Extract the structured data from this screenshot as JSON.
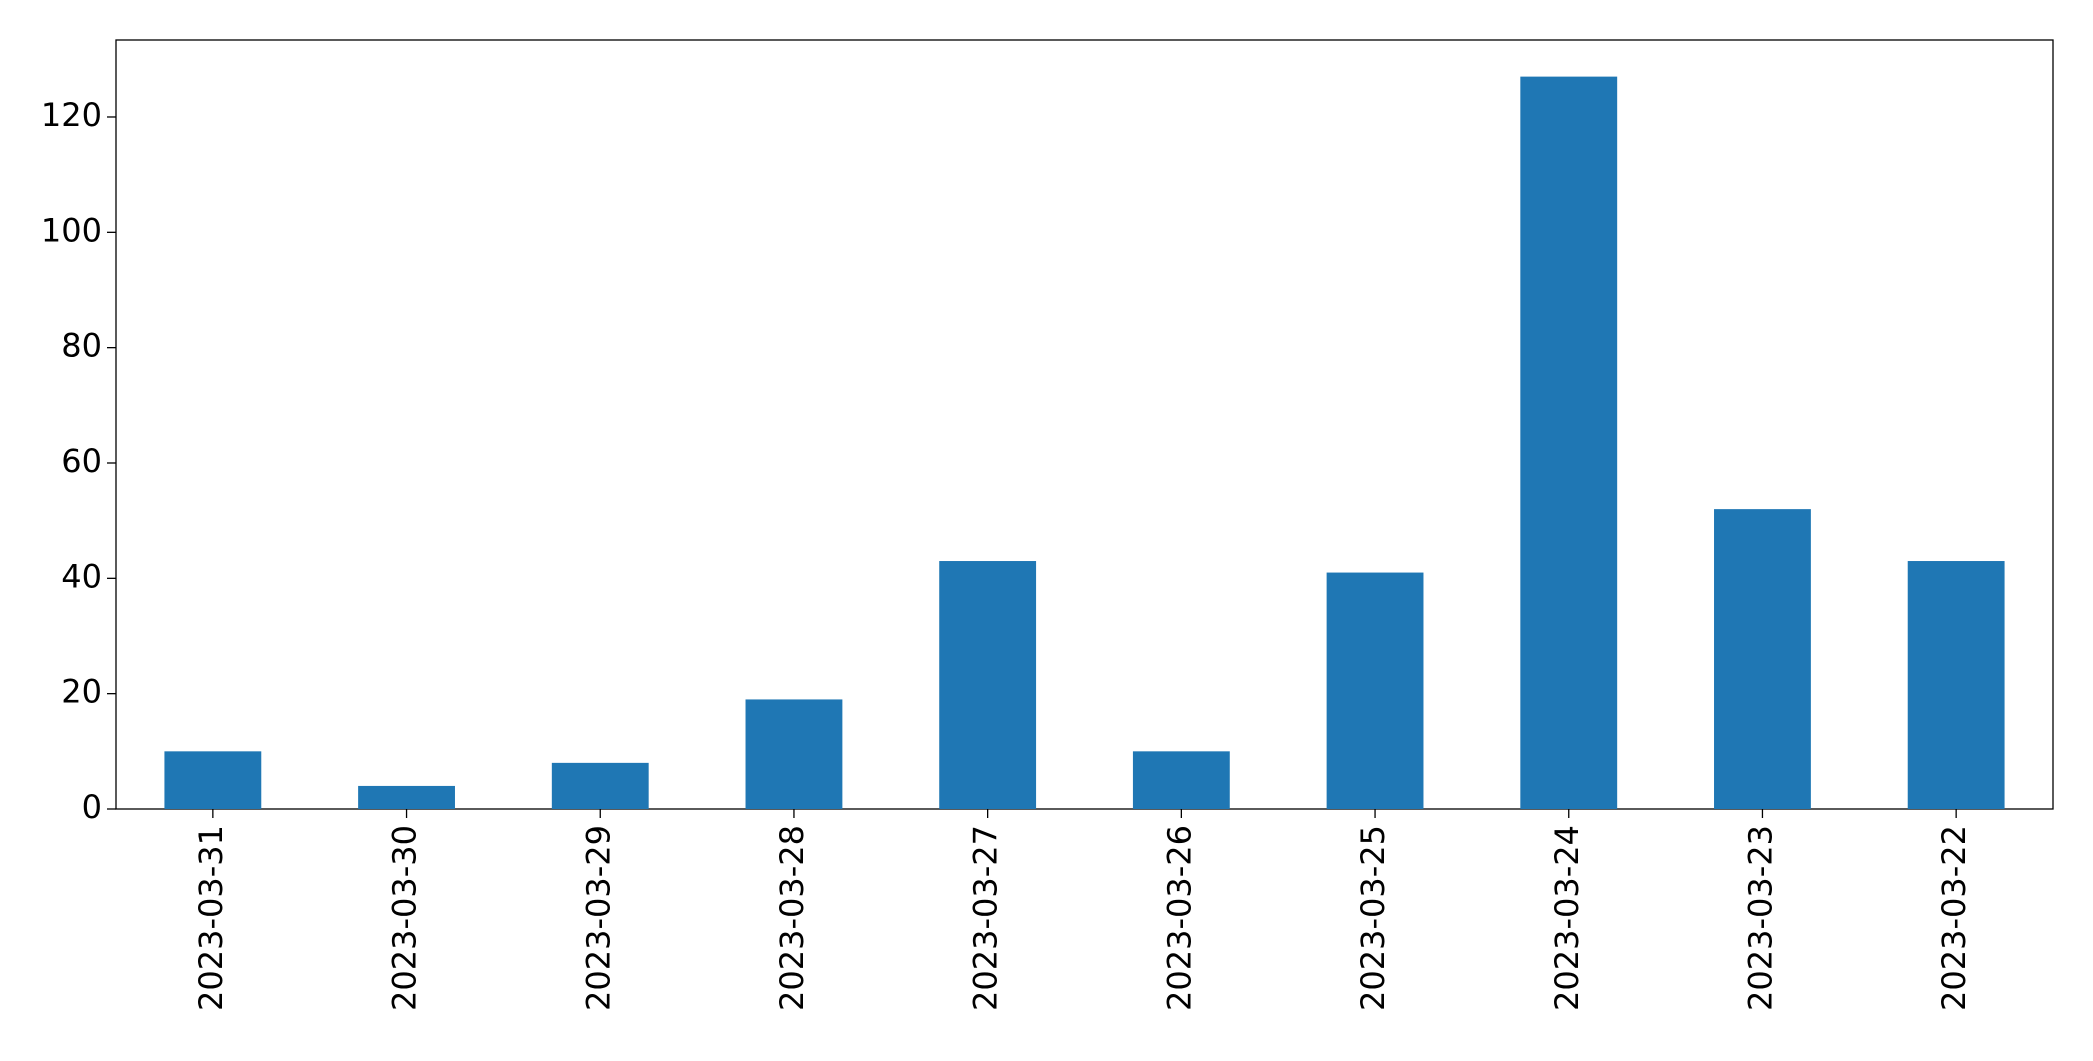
{
  "chart_data": {
    "type": "bar",
    "categories": [
      "2023-03-31",
      "2023-03-30",
      "2023-03-29",
      "2023-03-28",
      "2023-03-27",
      "2023-03-26",
      "2023-03-25",
      "2023-03-24",
      "2023-03-23",
      "2023-03-22"
    ],
    "values": [
      10,
      4,
      8,
      19,
      43,
      10,
      41,
      127,
      52,
      43
    ],
    "color": "#1f77b4",
    "ylim": [
      0,
      133.35
    ],
    "yticks": [
      0,
      20,
      40,
      60,
      80,
      100,
      120
    ],
    "grid": false
  }
}
